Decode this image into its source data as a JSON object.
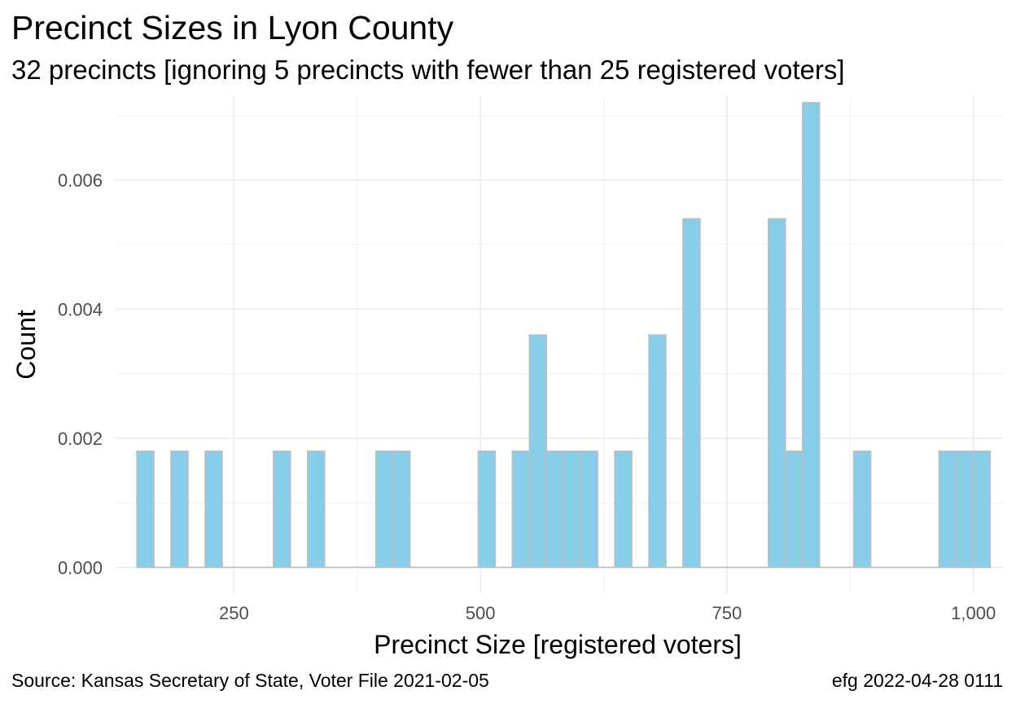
{
  "chart_data": {
    "type": "bar",
    "title": "Precinct Sizes in Lyon County",
    "subtitle": "32 precincts [ignoring 5 precincts with fewer than 25 registered voters]",
    "xlabel": "Precinct Size [registered voters]",
    "ylabel": "Count",
    "caption_left": "Source:  Kansas Secretary of State, Voter File  2021-02-05",
    "caption_right": "efg 2022-04-28 0111",
    "xlim": [
      130,
      1030
    ],
    "ylim": [
      -0.0004,
      0.0073
    ],
    "x_ticks": [
      250,
      500,
      750,
      1000
    ],
    "x_tick_labels": [
      "250",
      "500",
      "750",
      "1,000"
    ],
    "y_ticks": [
      0,
      0.002,
      0.004,
      0.006
    ],
    "y_tick_labels": [
      "0.000",
      "0.002",
      "0.004",
      "0.006"
    ],
    "grid": true,
    "bar_fill": "#87ceeb",
    "bar_outline": "#bebebe",
    "bin_width": 17.3,
    "bins": [
      {
        "x": 160.2,
        "density": 0.0018
      },
      {
        "x": 194.8,
        "density": 0.0018
      },
      {
        "x": 229.5,
        "density": 0.0018
      },
      {
        "x": 298.7,
        "density": 0.0018
      },
      {
        "x": 333.3,
        "density": 0.0018
      },
      {
        "x": 402.6,
        "density": 0.0018
      },
      {
        "x": 419.9,
        "density": 0.0018
      },
      {
        "x": 506.4,
        "density": 0.0018
      },
      {
        "x": 541.0,
        "density": 0.0018
      },
      {
        "x": 558.3,
        "density": 0.0036
      },
      {
        "x": 575.7,
        "density": 0.0018
      },
      {
        "x": 593.0,
        "density": 0.0018
      },
      {
        "x": 610.3,
        "density": 0.0018
      },
      {
        "x": 644.9,
        "density": 0.0018
      },
      {
        "x": 679.5,
        "density": 0.0036
      },
      {
        "x": 714.1,
        "density": 0.0054
      },
      {
        "x": 800.7,
        "density": 0.0054
      },
      {
        "x": 818.0,
        "density": 0.0018
      },
      {
        "x": 835.3,
        "density": 0.0072
      },
      {
        "x": 887.2,
        "density": 0.0018
      },
      {
        "x": 973.8,
        "density": 0.0018
      },
      {
        "x": 991.1,
        "density": 0.0018
      },
      {
        "x": 1008.4,
        "density": 0.0018
      }
    ]
  }
}
